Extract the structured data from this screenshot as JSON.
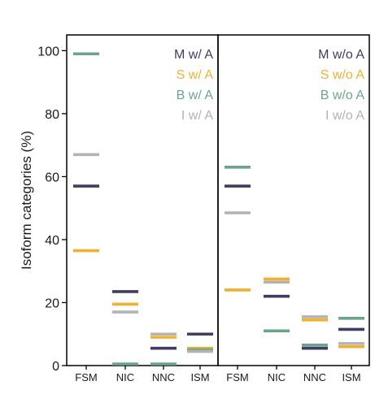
{
  "chart_data": {
    "type": "scatter",
    "ylabel": "Isoform categories (%)",
    "ylim": [
      0,
      105
    ],
    "yticks": [
      0,
      20,
      40,
      60,
      80,
      100
    ],
    "categories": [
      "FSM",
      "NIC",
      "NNC",
      "ISM"
    ],
    "colors": {
      "M": "#3f3d63",
      "S": "#f0b030",
      "B": "#6aa58b",
      "I": "#b3b3b3"
    },
    "panels": [
      {
        "series": [
          {
            "key": "M",
            "name": "M w/ A",
            "values": [
              57,
              23.5,
              5.5,
              10
            ]
          },
          {
            "key": "S",
            "name": "S w/ A",
            "values": [
              36.5,
              19.5,
              9,
              5.5
            ]
          },
          {
            "key": "B",
            "name": "B w/ A",
            "values": [
              99,
              0.5,
              0.5,
              5
            ]
          },
          {
            "key": "I",
            "name": "I w/ A",
            "values": [
              67,
              17,
              10,
              4.5
            ]
          }
        ]
      },
      {
        "series": [
          {
            "key": "M",
            "name": "M w/o A",
            "values": [
              57,
              22,
              5.5,
              11.5
            ]
          },
          {
            "key": "S",
            "name": "S w/o A",
            "values": [
              24,
              27.5,
              14.5,
              6
            ]
          },
          {
            "key": "B",
            "name": "B w/o A",
            "values": [
              63,
              11,
              6.5,
              15
            ]
          },
          {
            "key": "I",
            "name": "I w/o A",
            "values": [
              48.5,
              26.5,
              15.5,
              7
            ]
          }
        ]
      }
    ]
  }
}
